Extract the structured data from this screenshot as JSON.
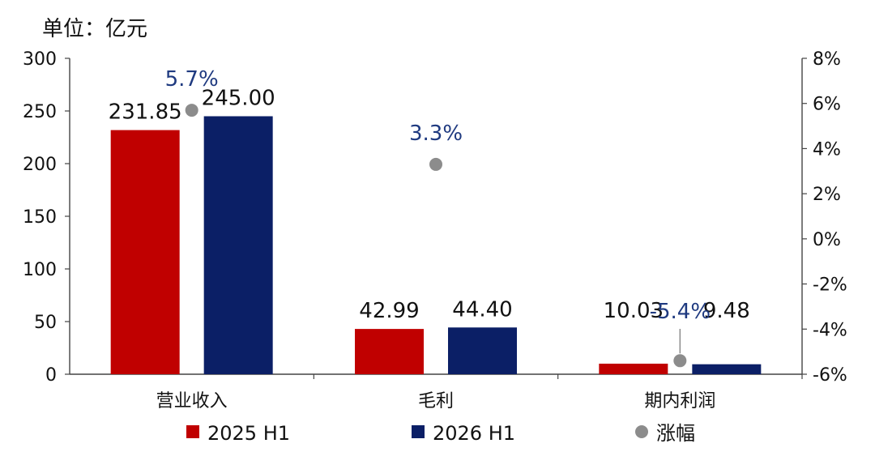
{
  "chart_data": {
    "type": "bar",
    "unit_label": "单位：亿元",
    "categories": [
      "营业收入",
      "毛利",
      "期内利润"
    ],
    "series": [
      {
        "name": "2025 H1",
        "values": [
          231.85,
          42.99,
          10.03
        ],
        "labels": [
          "231.85",
          "42.99",
          "10.03"
        ],
        "color": "#c00000"
      },
      {
        "name": "2026 H1",
        "values": [
          245.0,
          44.4,
          9.48
        ],
        "labels": [
          "245.00",
          "44.40",
          "9.48"
        ],
        "color": "#0b1f66"
      }
    ],
    "growth_series": {
      "name": "涨幅",
      "type": "scatter",
      "values": [
        5.7,
        3.3,
        -5.4
      ],
      "labels": [
        "5.7%",
        "3.3%",
        "-5.4%"
      ],
      "color": "#8c8c8c",
      "label_color": "#1f3a80"
    },
    "left_axis": {
      "ylim": [
        0,
        300
      ],
      "ticks": [
        "0",
        "50",
        "100",
        "150",
        "200",
        "250",
        "300"
      ]
    },
    "right_axis": {
      "ylim": [
        -6,
        8
      ],
      "ticks": [
        "-6%",
        "-4%",
        "-2%",
        "0%",
        "2%",
        "4%",
        "6%",
        "8%"
      ]
    },
    "grid": false,
    "legend_position": "bottom"
  }
}
